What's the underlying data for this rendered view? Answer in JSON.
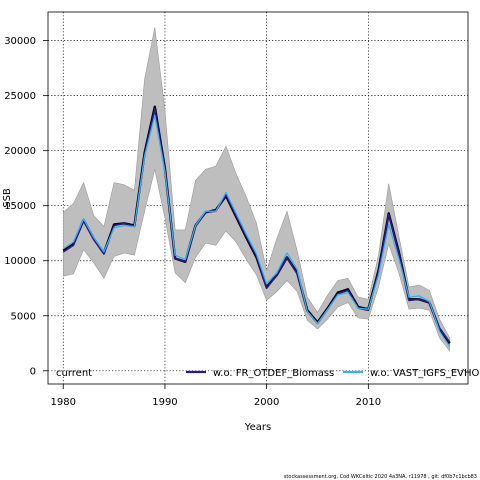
{
  "chart_data": {
    "type": "line",
    "title": "",
    "xlabel": "Years",
    "ylabel": "SSB",
    "xlim": [
      1978.5,
      2019.8
    ],
    "ylim": [
      -1200,
      32600
    ],
    "xticks": [
      1980,
      1990,
      2000,
      2010
    ],
    "yticks": [
      0,
      5000,
      10000,
      15000,
      20000,
      25000,
      30000
    ],
    "grid": true,
    "legend_position": "bottom",
    "legend": [
      "current",
      "w.o. FR_OTDEF_Biomass",
      "w.o. VAST_IGFS_EVHOE"
    ],
    "footer": "stockassessment.org, Cod WKCeltic 2020 4a3NA, r11978 , git: df0b7c1bcb83",
    "x": [
      1980,
      1981,
      1982,
      1983,
      1984,
      1985,
      1986,
      1987,
      1988,
      1989,
      1990,
      1991,
      1992,
      1993,
      1994,
      1995,
      1996,
      1997,
      1998,
      1999,
      2000,
      2001,
      2002,
      2003,
      2004,
      2005,
      2006,
      2007,
      2008,
      2009,
      2010,
      2011,
      2012,
      2013,
      2014,
      2015,
      2016,
      2017,
      2018
    ],
    "band_lower": [
      8600,
      8800,
      11000,
      9800,
      8400,
      10400,
      10700,
      10500,
      14500,
      18300,
      13900,
      8900,
      8000,
      10300,
      11600,
      11400,
      12700,
      11700,
      10100,
      8700,
      6400,
      7200,
      8200,
      7200,
      4600,
      3800,
      4700,
      5800,
      6200,
      4800,
      4700,
      7600,
      11500,
      8900,
      5600,
      5700,
      5500,
      3000,
      1800
    ],
    "band_upper": [
      14400,
      15200,
      17100,
      14100,
      13100,
      17100,
      16900,
      16400,
      26500,
      31200,
      23700,
      12800,
      12800,
      17300,
      18300,
      18600,
      20400,
      17900,
      15800,
      13400,
      9100,
      12000,
      14500,
      10900,
      6700,
      5300,
      6900,
      8200,
      8400,
      6700,
      6500,
      10500,
      17000,
      12300,
      7600,
      7800,
      7300,
      4700,
      3000
    ],
    "series": [
      {
        "name": "current",
        "color": "#000000",
        "values": [
          10900,
          11500,
          13700,
          12000,
          10700,
          13300,
          13400,
          13200,
          19800,
          24000,
          18400,
          10200,
          9900,
          13200,
          14400,
          14600,
          15900,
          14000,
          12100,
          10300,
          7600,
          8700,
          10300,
          8900,
          5500,
          4400,
          5700,
          7100,
          7400,
          5800,
          5600,
          9100,
          14300,
          10800,
          6500,
          6500,
          6200,
          3800,
          2500
        ]
      },
      {
        "name": "w.o. FR_OTDEF_Biomass",
        "color": "#2a1a8a",
        "values": [
          10800,
          11400,
          13600,
          11900,
          10600,
          13200,
          13400,
          13100,
          19700,
          23800,
          18300,
          10200,
          9900,
          13100,
          14400,
          14500,
          16000,
          14100,
          12200,
          10400,
          7500,
          8700,
          10300,
          8800,
          5400,
          4300,
          5600,
          7000,
          7300,
          5700,
          5500,
          9000,
          14200,
          10700,
          6400,
          6500,
          6200,
          3900,
          2600
        ]
      },
      {
        "name": "w.o. VAST_IGFS_EVHOE",
        "color": "#3ab0ee",
        "values": [
          11100,
          11700,
          13800,
          12100,
          10800,
          13000,
          13200,
          13100,
          19500,
          23200,
          18100,
          10500,
          10100,
          13200,
          14500,
          14500,
          16200,
          14300,
          12400,
          10600,
          7900,
          8900,
          10700,
          9200,
          5400,
          4300,
          5600,
          6900,
          7100,
          5700,
          5600,
          8700,
          13300,
          10200,
          6700,
          6800,
          6300,
          3600,
          2200
        ]
      }
    ]
  }
}
